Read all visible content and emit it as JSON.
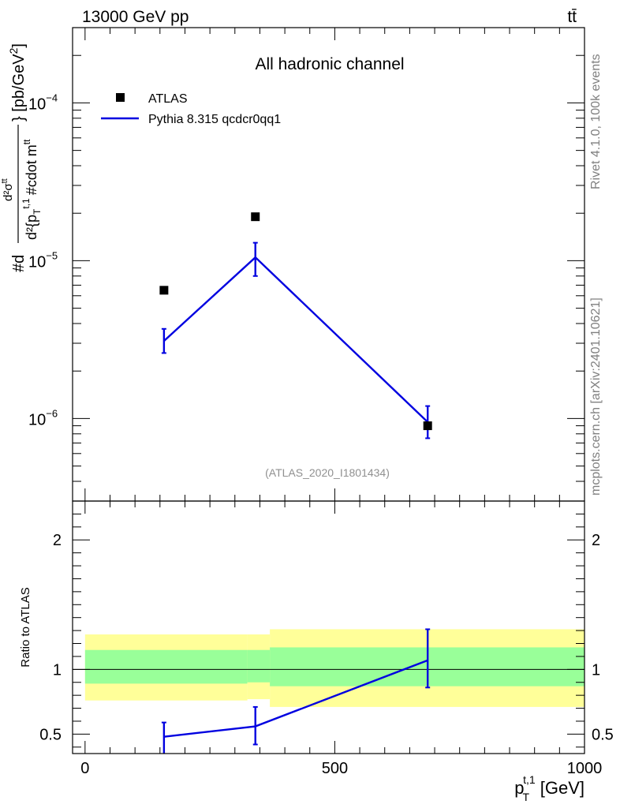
{
  "header": {
    "left_label": "13000 GeV pp",
    "right_label": "tt̄"
  },
  "side_labels": {
    "rivet": "Rivet 4.1.0,  100k events",
    "mcplots": "mcplots.cern.ch [arXiv:2401.10621]"
  },
  "chart_data": [
    {
      "type": "scatter",
      "panel": "main",
      "title": "All hadronic channel",
      "watermark": "(ATLAS_2020_I1801434)",
      "ylabel": "#d d²σᵗᵗ / d² {p_T^{t,1} #cdot m^{tt}} [pb/GeV²]",
      "ylabel_parts": {
        "numerator": "#d",
        "fraction_top": "d²σ",
        "fraction_top_sup": "tt",
        "fraction_bottom": "d²{p",
        "fraction_bottom_sub": "T",
        "fraction_bottom_sup": "t,1",
        "fraction_bottom_tail": "#cdot m",
        "fraction_bottom_tail_sup": "tt",
        "unit": "} [pb/GeV",
        "unit_sup": "2",
        "unit_end": "]"
      },
      "yscale": "log",
      "ylim": [
        3e-07,
        0.0003
      ],
      "xlim": [
        -25,
        1000
      ],
      "y_ticks": [
        {
          "value": 1e-06,
          "base": "10",
          "exp": "−6"
        },
        {
          "value": 1e-05,
          "base": "10",
          "exp": "−5"
        },
        {
          "value": 0.0001,
          "base": "10",
          "exp": "−4"
        }
      ],
      "legend": {
        "position": "top-left",
        "entries": [
          {
            "label": "ATLAS",
            "style": "marker"
          },
          {
            "label": "Pythia 8.315 qcdcr0qq1",
            "style": "line"
          }
        ]
      },
      "series": [
        {
          "name": "ATLAS",
          "color": "#000000",
          "points": [
            {
              "x": 158,
              "y": 6.5e-06
            },
            {
              "x": 341,
              "y": 1.9e-05
            },
            {
              "x": 686,
              "y": 9e-07
            }
          ]
        },
        {
          "name": "Pythia 8.315 qcdcr0qq1",
          "color": "#0000e0",
          "points": [
            {
              "x": 158,
              "y": 3.1e-06,
              "ylo": 2.6e-06,
              "yhi": 3.7e-06
            },
            {
              "x": 341,
              "y": 1.05e-05,
              "ylo": 8e-06,
              "yhi": 1.3e-05
            },
            {
              "x": 686,
              "y": 9.5e-07,
              "ylo": 7.5e-07,
              "yhi": 1.2e-06
            }
          ]
        }
      ]
    },
    {
      "type": "line",
      "panel": "ratio",
      "ylabel": "Ratio to ATLAS",
      "xlabel": "p_T^{t,1} [GeV]",
      "xlabel_parts": {
        "main": "p",
        "sub": "T",
        "sup": "t,1",
        "unit": " [GeV]"
      },
      "ylim": [
        0.35,
        2.3
      ],
      "xlim": [
        -25,
        1000
      ],
      "x_ticks": [
        0,
        500,
        1000
      ],
      "y_ticks": [
        0.5,
        1,
        2
      ],
      "reference_line": 1,
      "bands": [
        {
          "x0": 0,
          "x1": 325,
          "inner": [
            0.89,
            1.15
          ],
          "outer": [
            0.76,
            1.27
          ]
        },
        {
          "x0": 325,
          "x1": 370,
          "inner": [
            0.9,
            1.15
          ],
          "outer": [
            0.77,
            1.27
          ]
        },
        {
          "x0": 370,
          "x1": 1000,
          "inner": [
            0.87,
            1.17
          ],
          "outer": [
            0.71,
            1.31
          ]
        }
      ],
      "band_colors": {
        "inner": "#99ff99",
        "outer": "#ffff99"
      },
      "series": [
        {
          "name": "Pythia 8.315 qcdcr0qq1",
          "color": "#0000e0",
          "points": [
            {
              "x": 158,
              "y": 0.48,
              "ylo": 0.34,
              "yhi": 0.59
            },
            {
              "x": 341,
              "y": 0.56,
              "ylo": 0.42,
              "yhi": 0.71
            },
            {
              "x": 686,
              "y": 1.07,
              "ylo": 0.86,
              "yhi": 1.31
            }
          ]
        }
      ]
    }
  ]
}
